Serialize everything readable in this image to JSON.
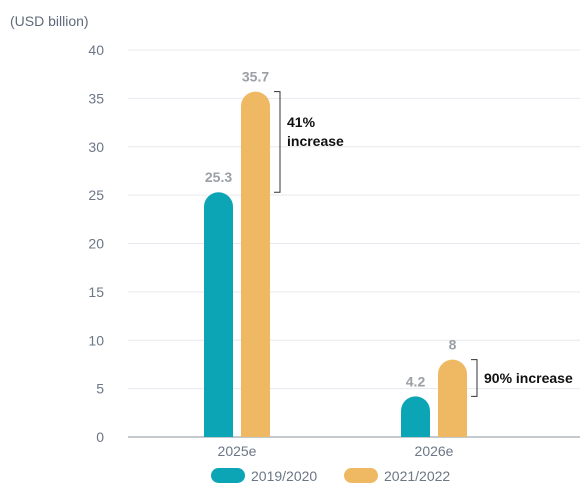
{
  "chart_data": {
    "type": "bar",
    "unit_label": "(USD billion)",
    "categories": [
      "2025e",
      "2026e"
    ],
    "series": [
      {
        "name": "2019/2020",
        "values": [
          25.3,
          4.2
        ],
        "color": "#0ca5b5"
      },
      {
        "name": "2021/2022",
        "values": [
          35.7,
          8
        ],
        "color": "#efb863"
      }
    ],
    "data_labels": [
      [
        "25.3",
        "4.2"
      ],
      [
        "35.7",
        "8"
      ]
    ],
    "ylim": [
      0,
      40
    ],
    "yticks": [
      0,
      5,
      10,
      15,
      20,
      25,
      30,
      35,
      40
    ],
    "grid": true,
    "legend_position": "bottom",
    "annotations": [
      {
        "category_index": 0,
        "lines": [
          "41%",
          "increase"
        ]
      },
      {
        "category_index": 1,
        "lines": [
          "90% increase"
        ]
      }
    ]
  }
}
